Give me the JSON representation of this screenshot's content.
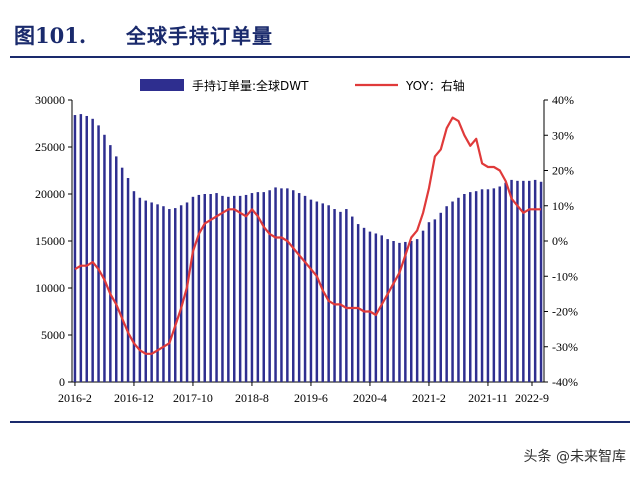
{
  "figure": {
    "number": "图101.",
    "title": "全球手持订单量"
  },
  "watermark": "头条 @未来智库",
  "colors": {
    "bar": "#2e2e8f",
    "line": "#e03a3a",
    "frame": "#1a2a6c"
  },
  "chart_data": {
    "type": "bar+line",
    "legend": [
      "手持订单量:全球DWT",
      "YOY：右轴"
    ],
    "legend_position": "top",
    "x_tick_labels": [
      "2016-2",
      "2016-12",
      "2017-10",
      "2018-8",
      "2019-6",
      "2020-4",
      "2021-2",
      "2021-11",
      "2022-9"
    ],
    "y_left": {
      "ticks": [
        "0",
        "5000",
        "10000",
        "15000",
        "20000",
        "25000",
        "30000"
      ],
      "range": [
        0,
        30000
      ]
    },
    "y_right": {
      "ticks": [
        "-40%",
        "-30%",
        "-20%",
        "-10%",
        "0%",
        "10%",
        "20%",
        "30%",
        "40%"
      ],
      "range": [
        -40,
        40
      ]
    },
    "categories": [
      "2016-02",
      "2016-03",
      "2016-04",
      "2016-05",
      "2016-06",
      "2016-07",
      "2016-08",
      "2016-09",
      "2016-10",
      "2016-11",
      "2016-12",
      "2017-01",
      "2017-02",
      "2017-03",
      "2017-04",
      "2017-05",
      "2017-06",
      "2017-07",
      "2017-08",
      "2017-09",
      "2017-10",
      "2017-11",
      "2017-12",
      "2018-01",
      "2018-02",
      "2018-03",
      "2018-04",
      "2018-05",
      "2018-06",
      "2018-07",
      "2018-08",
      "2018-09",
      "2018-10",
      "2018-11",
      "2018-12",
      "2019-01",
      "2019-02",
      "2019-03",
      "2019-04",
      "2019-05",
      "2019-06",
      "2019-07",
      "2019-08",
      "2019-09",
      "2019-10",
      "2019-11",
      "2019-12",
      "2020-01",
      "2020-02",
      "2020-03",
      "2020-04",
      "2020-05",
      "2020-06",
      "2020-07",
      "2020-08",
      "2020-09",
      "2020-10",
      "2020-11",
      "2020-12",
      "2021-01",
      "2021-02",
      "2021-03",
      "2021-04",
      "2021-05",
      "2021-06",
      "2021-07",
      "2021-08",
      "2021-09",
      "2021-10",
      "2021-11",
      "2021-12",
      "2022-01",
      "2022-02",
      "2022-03",
      "2022-04",
      "2022-05",
      "2022-06",
      "2022-07",
      "2022-08",
      "2022-09"
    ],
    "series": [
      {
        "name": "手持订单量:全球DWT",
        "type": "bar",
        "axis": "left",
        "values": [
          28400,
          28500,
          28300,
          28000,
          27300,
          26300,
          25200,
          24000,
          22800,
          21700,
          20300,
          19600,
          19300,
          19100,
          18900,
          18700,
          18400,
          18500,
          18800,
          19100,
          19700,
          19900,
          20000,
          20000,
          20100,
          19800,
          19700,
          19800,
          19800,
          19900,
          20100,
          20200,
          20200,
          20400,
          20700,
          20600,
          20600,
          20400,
          20100,
          19800,
          19400,
          19200,
          19000,
          18800,
          18400,
          18100,
          18400,
          17600,
          16800,
          16400,
          16000,
          15800,
          15600,
          15200,
          15000,
          14800,
          14900,
          15000,
          15200,
          16100,
          17000,
          17300,
          18000,
          18700,
          19200,
          19600,
          20000,
          20200,
          20300,
          20500,
          20500,
          20600,
          20800,
          21200,
          21500,
          21400,
          21400,
          21400,
          21500,
          21300
        ]
      },
      {
        "name": "YOY：右轴",
        "type": "line",
        "axis": "right",
        "values": [
          -8,
          -7,
          -7,
          -6,
          -8,
          -11,
          -15,
          -18,
          -22,
          -26,
          -29,
          -31,
          -32,
          -32,
          -31,
          -30,
          -29,
          -24,
          -19,
          -13,
          -3,
          2,
          5,
          6,
          7,
          8,
          9,
          9,
          8,
          7,
          9,
          7,
          4,
          2,
          1,
          1,
          0,
          -2,
          -4,
          -6,
          -8,
          -10,
          -14,
          -17,
          -18,
          -18,
          -19,
          -19,
          -19,
          -20,
          -20,
          -21,
          -18,
          -15,
          -12,
          -9,
          -4,
          1,
          3,
          8,
          15,
          24,
          26,
          32,
          35,
          34,
          30,
          27,
          29,
          22,
          21,
          21,
          20,
          17,
          12,
          10,
          8,
          9,
          9,
          9
        ]
      }
    ]
  }
}
